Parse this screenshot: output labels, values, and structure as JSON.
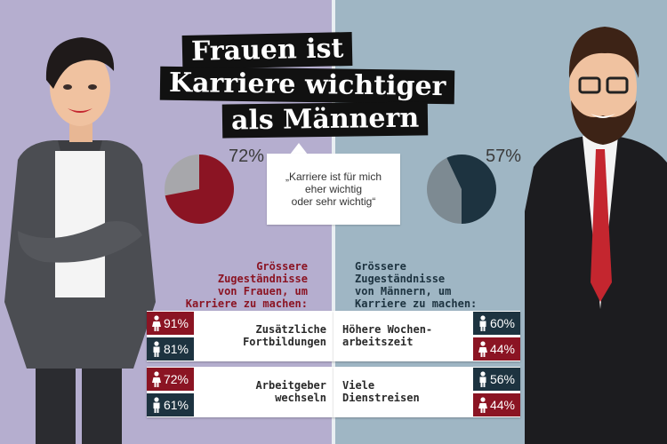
{
  "title": {
    "line1": "Frauen ist",
    "line2": "Karriere wichtiger",
    "line3": "als Männern"
  },
  "women": {
    "percent": "72%",
    "pie_fraction": 0.72,
    "heading": [
      "Grössere",
      "Zugeständnisse",
      "von Frauen, um",
      "Karriere zu machen:"
    ],
    "items": [
      {
        "label": [
          "Zusätzliche",
          "Fortbildungen"
        ],
        "female": "91%",
        "male": "81%"
      },
      {
        "label": [
          "Arbeitgeber",
          "wechseln"
        ],
        "female": "72%",
        "male": "61%"
      }
    ]
  },
  "men": {
    "percent": "57%",
    "pie_fraction": 0.57,
    "heading": [
      "Grössere",
      "Zugeständnisse",
      "von Männern, um",
      "Karriere zu machen:"
    ],
    "items": [
      {
        "label": [
          "Höhere Wochen-",
          "arbeitszeit"
        ],
        "male": "60%",
        "female": "44%"
      },
      {
        "label": [
          "Viele",
          "Dienstreisen"
        ],
        "male": "56%",
        "female": "44%"
      }
    ]
  },
  "quote": [
    "„Karriere ist für mich",
    "eher wichtig",
    "oder sehr wichtig“"
  ],
  "colors": {
    "accent_female": "#8b1423",
    "accent_male": "#1d3340",
    "bg_left": "#b5aecf",
    "bg_right": "#9fb6c4"
  }
}
